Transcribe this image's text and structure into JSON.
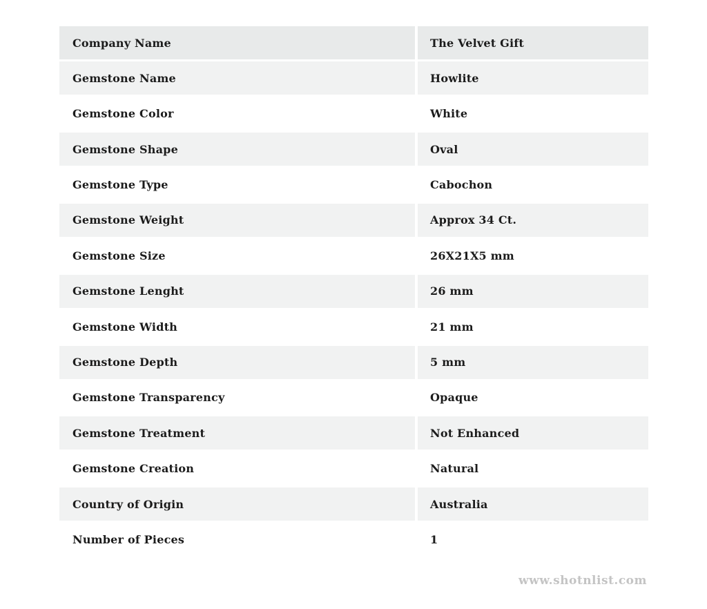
{
  "table": {
    "rows": [
      {
        "label": "Company Name",
        "value": "The Velvet Gift"
      },
      {
        "label": "Gemstone Name",
        "value": "Howlite"
      },
      {
        "label": "Gemstone Color",
        "value": "White"
      },
      {
        "label": "Gemstone Shape",
        "value": "Oval"
      },
      {
        "label": "Gemstone Type",
        "value": "Cabochon"
      },
      {
        "label": "Gemstone Weight",
        "value": "Approx 34 Ct."
      },
      {
        "label": "Gemstone Size",
        "value": "26X21X5 mm"
      },
      {
        "label": "Gemstone Lenght",
        "value": "26 mm"
      },
      {
        "label": "Gemstone Width",
        "value": "21 mm"
      },
      {
        "label": "Gemstone Depth",
        "value": "5 mm"
      },
      {
        "label": "Gemstone Transparency",
        "value": "Opaque"
      },
      {
        "label": "Gemstone Treatment",
        "value": "Not Enhanced"
      },
      {
        "label": "Gemstone Creation",
        "value": "Natural"
      },
      {
        "label": "Country of Origin",
        "value": "Australia"
      },
      {
        "label": "Number of Pieces",
        "value": "1"
      }
    ]
  },
  "watermark": {
    "text": "www.shotnlist.com"
  },
  "colors": {
    "header_row_bg": "#e8eaea",
    "alt_row_bg": "#f1f2f2",
    "plain_row_bg": "#ffffff",
    "text": "#1c1c1c",
    "watermark": "#c4c4c4"
  }
}
